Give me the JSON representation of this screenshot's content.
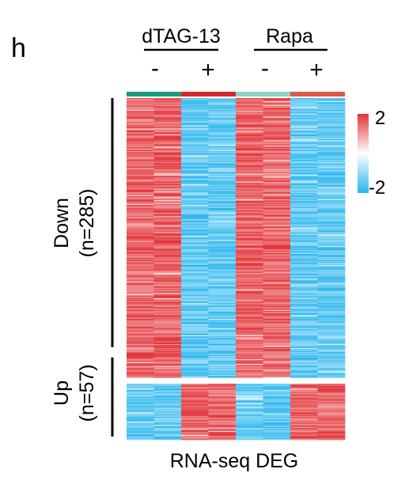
{
  "chart_data": {
    "type": "heatmap",
    "panel_label": "h",
    "groups": [
      {
        "label": "dTAG-13",
        "columns": [
          0,
          1
        ]
      },
      {
        "label": "Rapa",
        "columns": [
          2,
          3
        ]
      }
    ],
    "columns": [
      {
        "group": "dTAG-13",
        "treatment": "-",
        "color": "#1a9a7f"
      },
      {
        "group": "dTAG-13",
        "treatment": "+",
        "color": "#d62728"
      },
      {
        "group": "Rapa",
        "treatment": "-",
        "color": "#8fd3c4"
      },
      {
        "group": "Rapa",
        "treatment": "+",
        "color": "#e0584a"
      }
    ],
    "row_groups": [
      {
        "name": "Down",
        "count_label": "(n=285)",
        "n": 285,
        "pattern": [
          "high",
          "low",
          "high",
          "low"
        ]
      },
      {
        "name": "Up",
        "count_label": "(n=57)",
        "n": 57,
        "pattern": [
          "low",
          "high",
          "low",
          "high"
        ]
      }
    ],
    "color_scale": {
      "min": -2,
      "max": 2,
      "min_label": "-2",
      "max_label": "2",
      "low_color": "#2ab6ee",
      "mid_color": "#ffffff",
      "high_color": "#e23237"
    },
    "xlabel": "RNA-seq DEG"
  }
}
